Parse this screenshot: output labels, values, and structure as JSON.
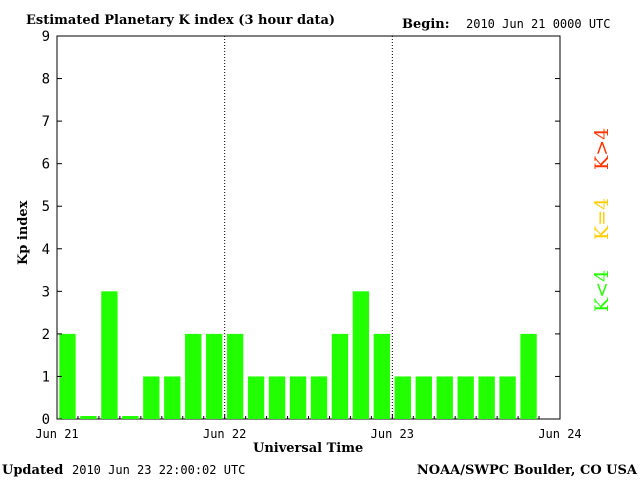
{
  "chart_data": {
    "type": "bar",
    "title": "Estimated Planetary K index (3 hour data)",
    "begin_label": "Begin:",
    "begin_value": "2010 Jun 21 0000 UTC",
    "ylabel": "Kp index",
    "xlabel": "Universal Time",
    "ylim": [
      0,
      9
    ],
    "yticks": [
      "0",
      "1",
      "2",
      "3",
      "4",
      "5",
      "6",
      "7",
      "8",
      "9"
    ],
    "xtick_labels": [
      "Jun 21",
      "Jun 22",
      "Jun 23",
      "Jun 24"
    ],
    "grid": "dotted vertical lines at day boundaries",
    "values": [
      2,
      0,
      3,
      0,
      1,
      1,
      2,
      2,
      2,
      1,
      1,
      1,
      1,
      2,
      3,
      2,
      1,
      1,
      1,
      1,
      1,
      1,
      2
    ],
    "bar_color": "#22ff00",
    "legend": [
      {
        "label": "K<4",
        "color": "#22ff00"
      },
      {
        "label": "K=4",
        "color": "#ffcc00"
      },
      {
        "label": "K>4",
        "color": "#ff3300"
      }
    ]
  },
  "footer": {
    "updated_label": "Updated",
    "updated_value": "2010 Jun 23 22:00:02 UTC",
    "source": "NOAA/SWPC Boulder, CO USA"
  }
}
